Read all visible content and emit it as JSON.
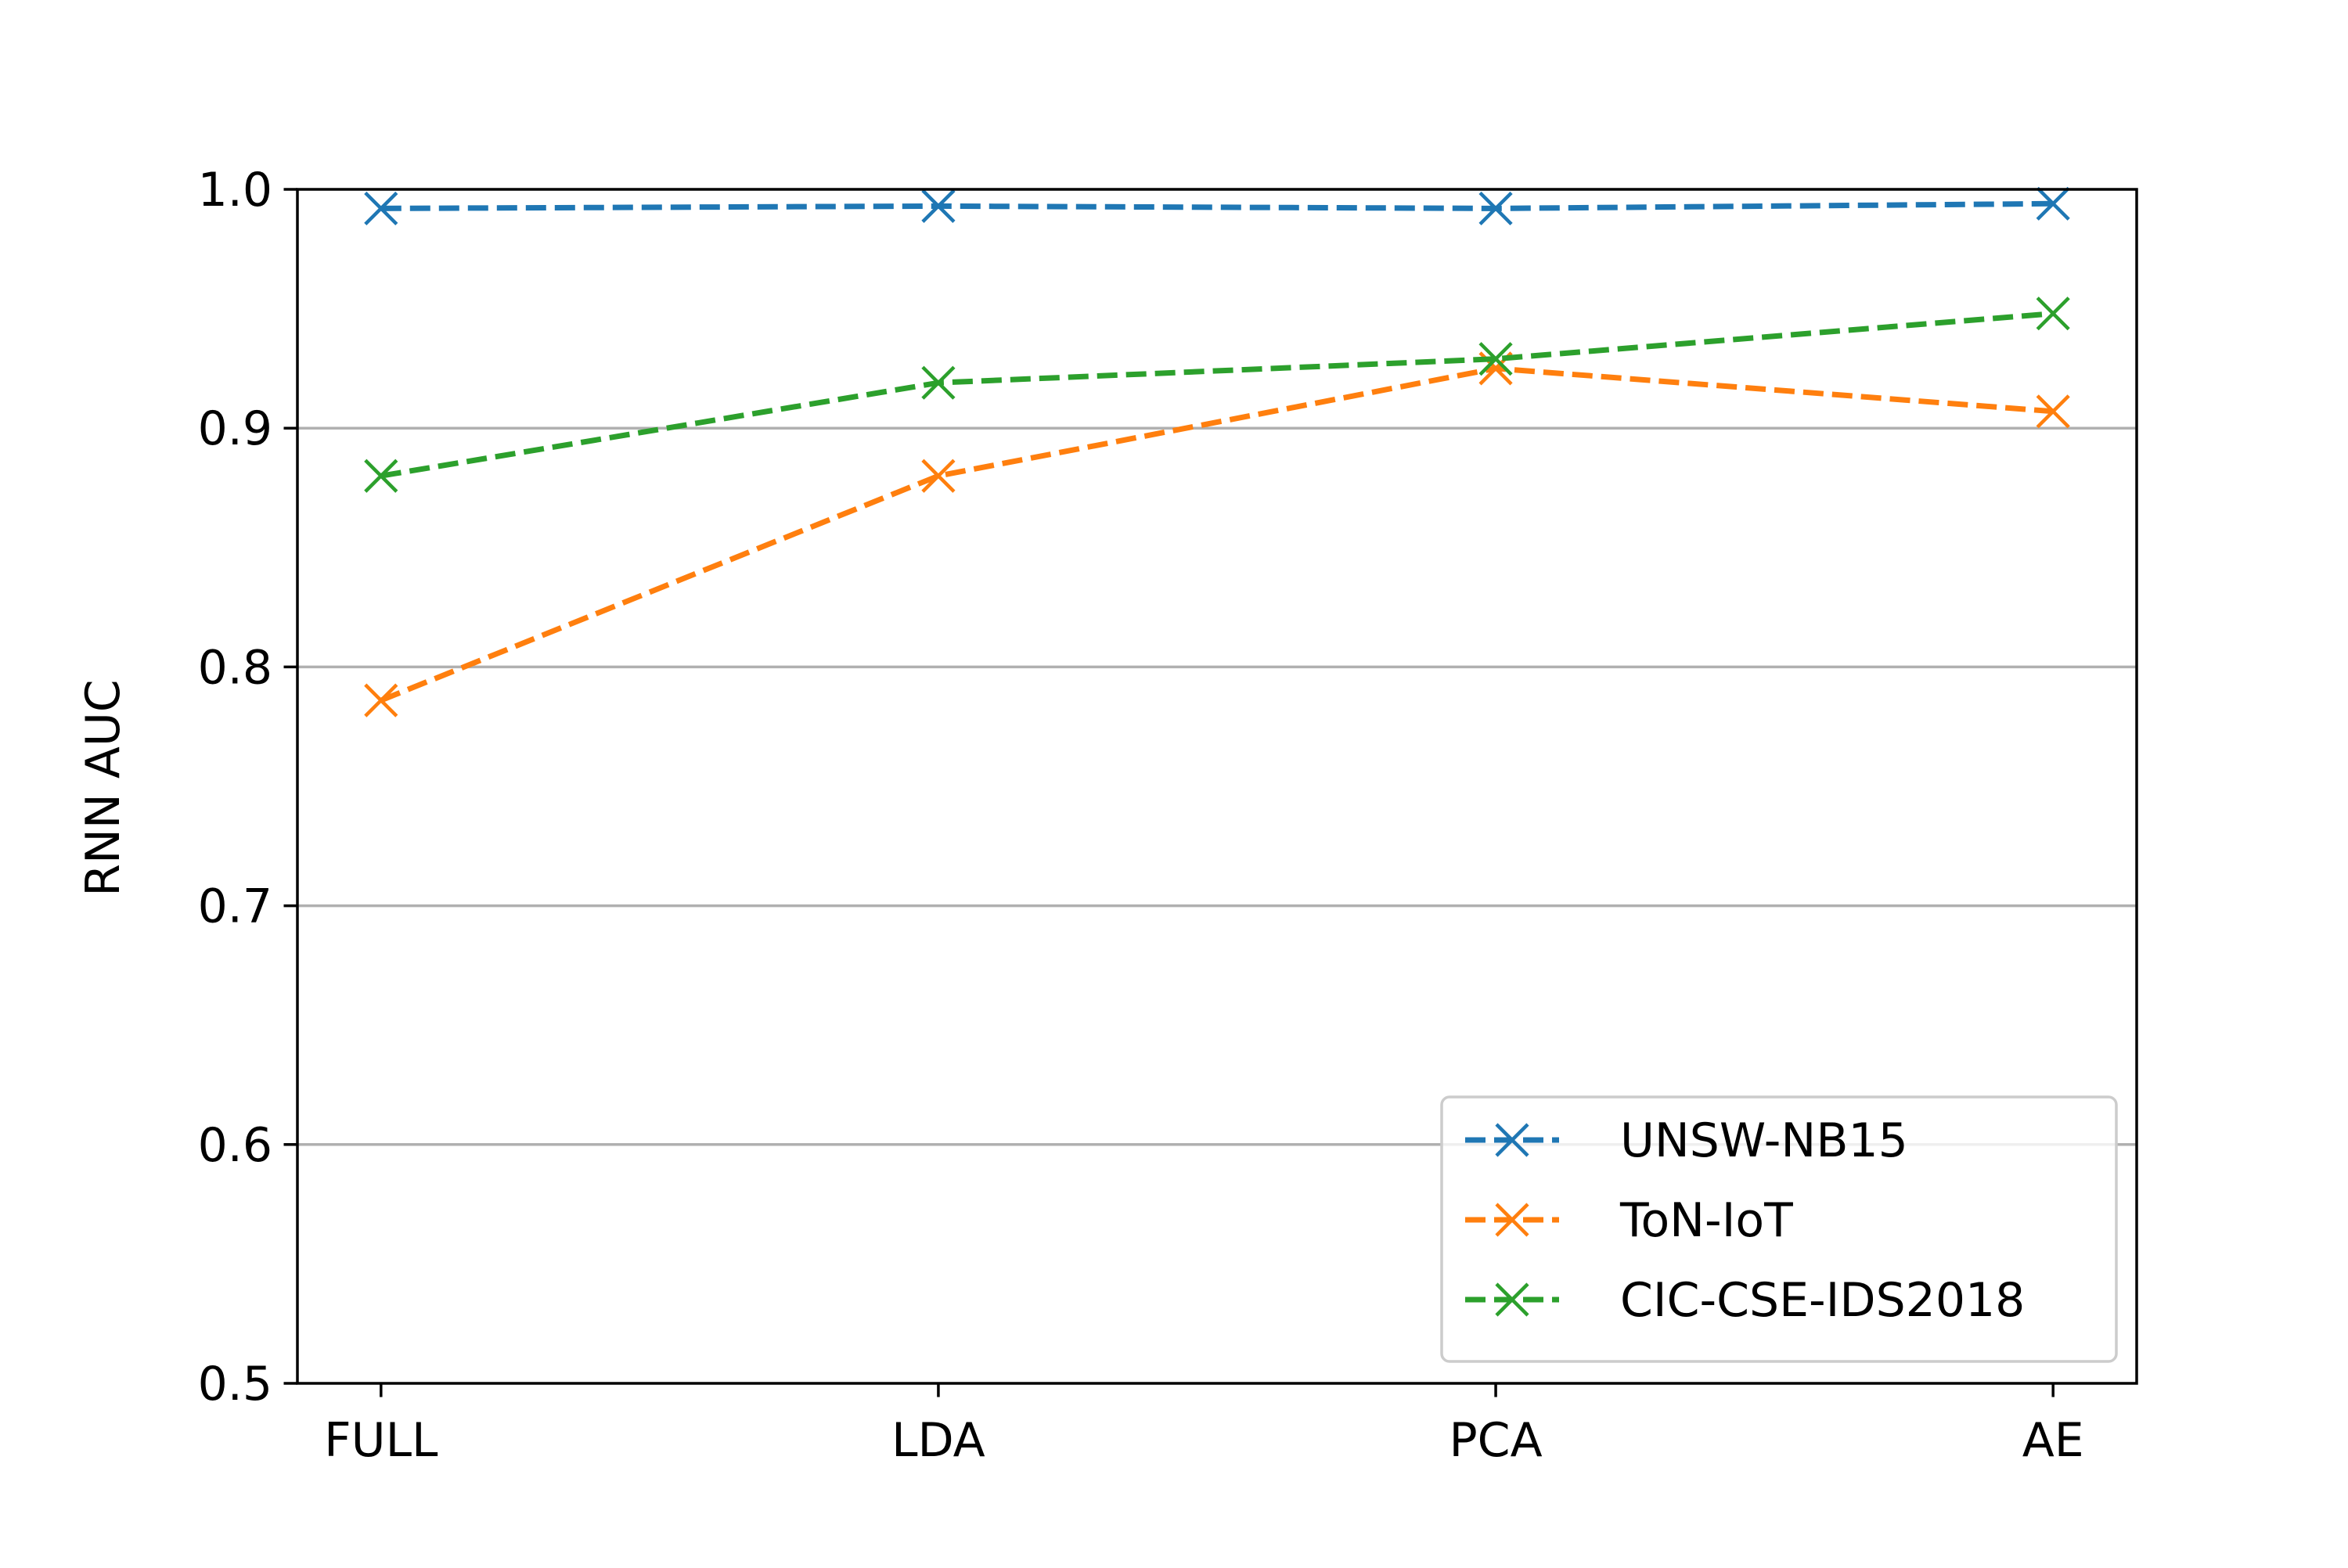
{
  "chart_data": {
    "type": "line",
    "title": "",
    "xlabel": "",
    "ylabel": "RNN AUC",
    "categories": [
      "FULL",
      "LDA",
      "PCA",
      "AE"
    ],
    "ylim": [
      0.5,
      1.0
    ],
    "yticks": [
      "0.5",
      "0.6",
      "0.7",
      "0.8",
      "0.9",
      "1.0"
    ],
    "grid": "y",
    "legend_position": "lower-right",
    "series": [
      {
        "name": "UNSW-NB15",
        "color": "#1f77b4",
        "marker": "x",
        "linestyle": "dashed",
        "values": [
          0.992,
          0.993,
          0.992,
          0.994
        ]
      },
      {
        "name": "ToN-IoT",
        "color": "#ff7f0e",
        "marker": "x",
        "linestyle": "dashed",
        "values": [
          0.786,
          0.88,
          0.925,
          0.907
        ]
      },
      {
        "name": "CIC-CSE-IDS2018",
        "color": "#2ca02c",
        "marker": "x",
        "linestyle": "dashed",
        "values": [
          0.88,
          0.919,
          0.929,
          0.948
        ]
      }
    ]
  }
}
